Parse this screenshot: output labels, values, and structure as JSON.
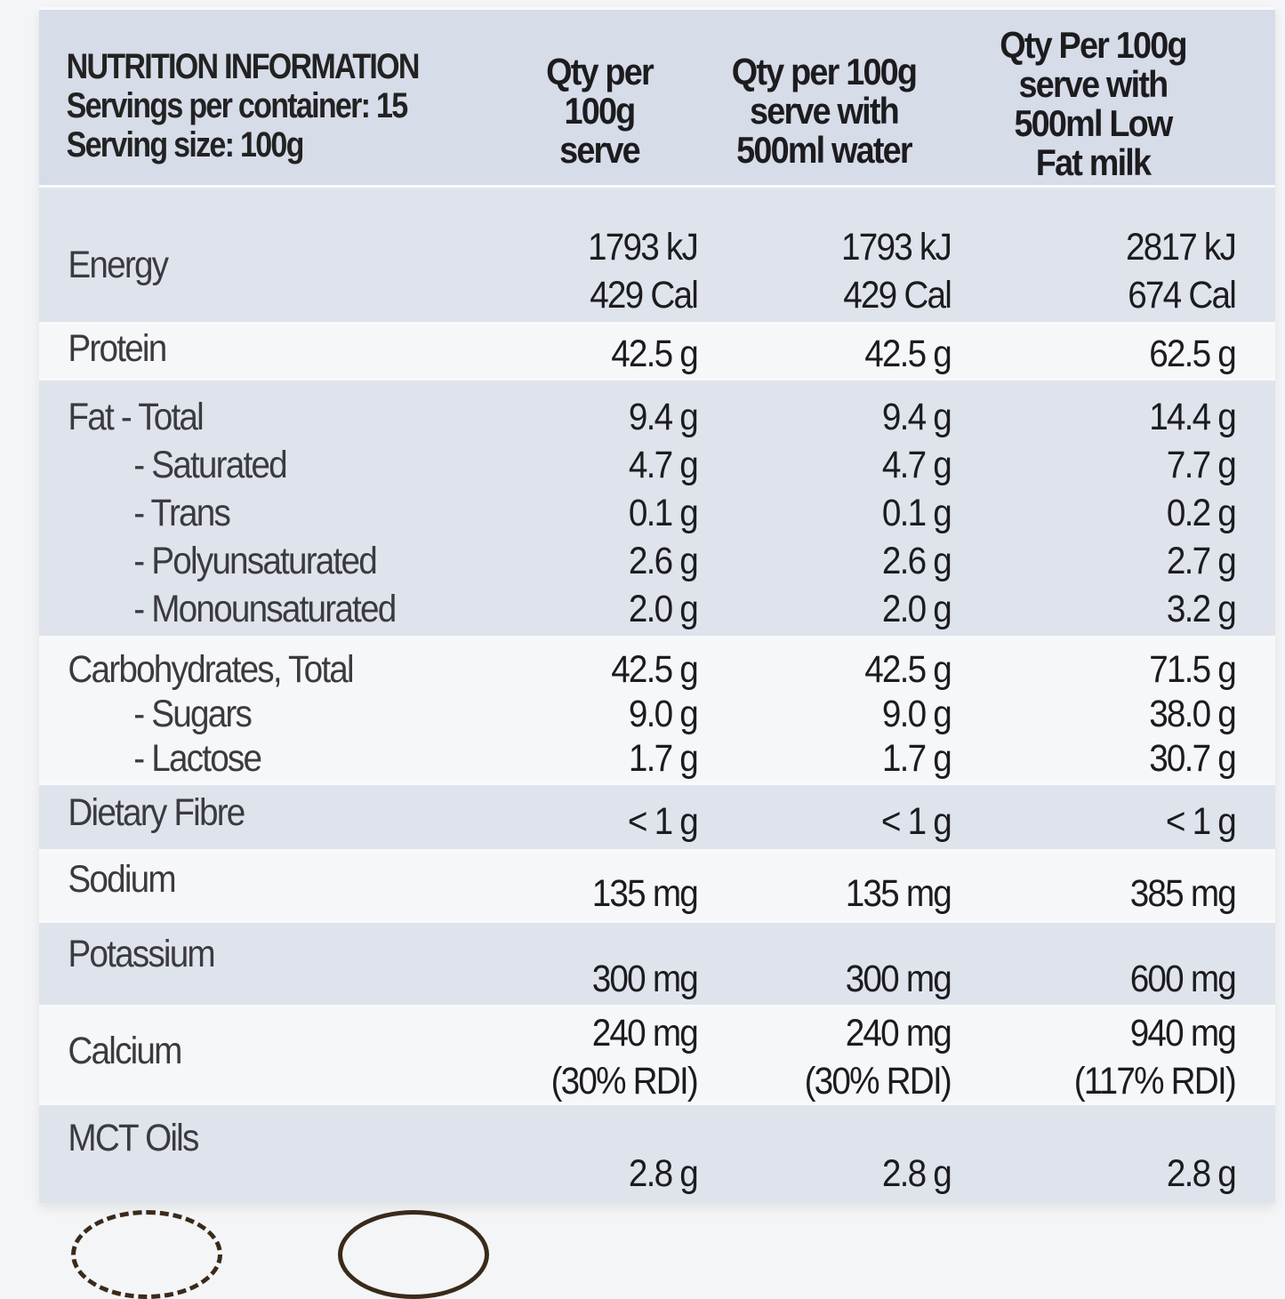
{
  "header": {
    "title": "NUTRITION INFORMATION",
    "servings": "Servings per container: 15",
    "serving_size": "Serving size: 100g",
    "columns": [
      "Qty per\n100g\nserve",
      "Qty per 100g\nserve with\n500ml water",
      "Qty Per 100g\nserve with\n500ml Low\nFat milk"
    ]
  },
  "rows": [
    {
      "label": "Energy",
      "values": [
        "1793 kJ\n429 Cal",
        "1793 kJ\n429 Cal",
        "2817 kJ\n674 Cal"
      ]
    },
    {
      "label": "Protein",
      "values": [
        "42.5 g",
        "42.5 g",
        "62.5 g"
      ]
    },
    {
      "label": "Fat  - Total",
      "subs": [
        "- Saturated",
        "- Trans",
        "- Polyunsaturated",
        "- Monounsaturated"
      ],
      "values": [
        "9.4 g\n4.7 g\n0.1 g\n2.6 g\n2.0 g",
        "9.4 g\n4.7 g\n0.1 g\n2.6 g\n2.0 g",
        "14.4 g\n7.7 g\n0.2 g\n2.7 g\n3.2 g"
      ]
    },
    {
      "label": "Carbohydrates, Total",
      "subs": [
        "- Sugars",
        "- Lactose"
      ],
      "values": [
        "42.5 g\n9.0 g\n1.7 g",
        "42.5 g\n9.0 g\n1.7 g",
        "71.5 g\n38.0 g\n30.7 g"
      ]
    },
    {
      "label": "Dietary Fibre",
      "values": [
        "< 1 g",
        "< 1 g",
        "< 1 g"
      ]
    },
    {
      "label": "Sodium",
      "values": [
        "135 mg",
        "135 mg",
        "385 mg"
      ]
    },
    {
      "label": "Potassium",
      "values": [
        "300 mg",
        "300 mg",
        "600 mg"
      ]
    },
    {
      "label": "Calcium",
      "values": [
        "240 mg\n(30% RDI)",
        "240 mg\n(30% RDI)",
        "940 mg\n(117% RDI)"
      ]
    },
    {
      "label": "MCT Oils",
      "values": [
        "2.8 g",
        "2.8 g",
        "2.8 g"
      ]
    }
  ]
}
